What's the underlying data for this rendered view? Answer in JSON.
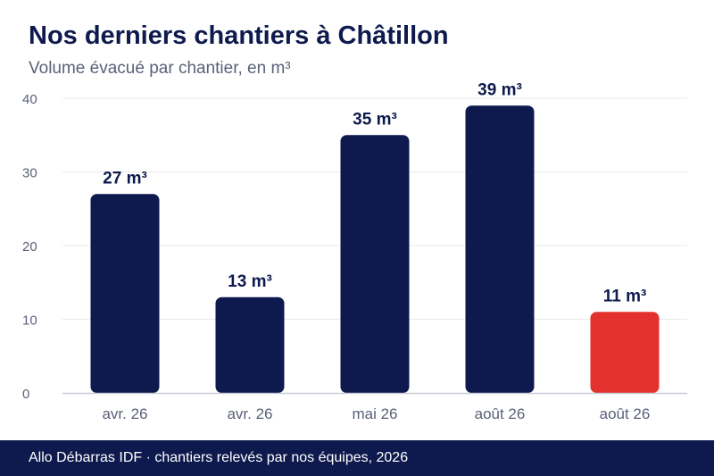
{
  "title": "Nos derniers chantiers à Châtillon",
  "subtitle": "Volume évacué par chantier, en m³",
  "footer": "Allo Débarras IDF · chantiers relevés par nos équipes, 2026",
  "colors": {
    "bar": "#0e1a4d",
    "highlight": "#e3312d",
    "grid": "#ebebeb",
    "axis": "#c9ccd8",
    "tick": "#5a6179",
    "label": "#0e1a4d"
  },
  "chart_data": {
    "type": "bar",
    "categories": [
      "avr. 26",
      "avr. 26",
      "mai 26",
      "août 26",
      "août 26"
    ],
    "values": [
      27,
      13,
      35,
      39,
      11
    ],
    "data_labels": [
      "27 m³",
      "13 m³",
      "35 m³",
      "39 m³",
      "11 m³"
    ],
    "highlight_index": 4,
    "ylim": [
      0,
      40
    ],
    "yticks": [
      0,
      10,
      20,
      30,
      40
    ],
    "grid": true
  }
}
